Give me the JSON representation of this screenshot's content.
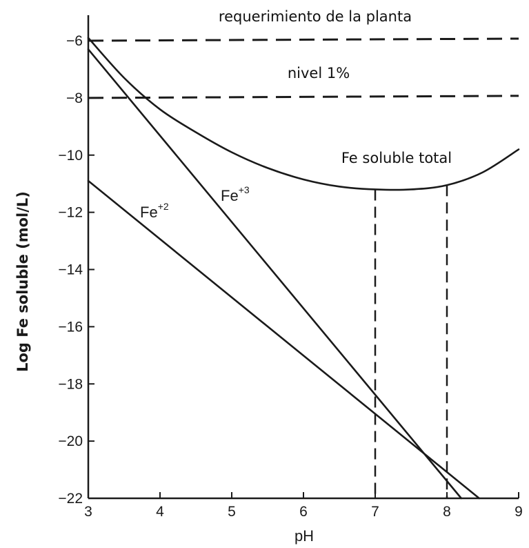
{
  "chart_data": {
    "type": "line",
    "title": "",
    "xlabel": "pH",
    "ylabel": "Log Fe soluble (mol/L)",
    "xlim": [
      3,
      9
    ],
    "ylim": [
      -22,
      -5.5
    ],
    "grid": false,
    "x_ticks": [
      "3",
      "4",
      "5",
      "6",
      "7",
      "8",
      "9"
    ],
    "y_ticks": [
      "−6",
      "−8",
      "−10",
      "−12",
      "−14",
      "−16",
      "−18",
      "−20",
      "−22"
    ],
    "x_tick_values": [
      3,
      4,
      5,
      6,
      7,
      8,
      9
    ],
    "y_tick_values": [
      -6,
      -8,
      -10,
      -12,
      -14,
      -16,
      -18,
      -20,
      -22
    ],
    "series": [
      {
        "name": "Fe+3",
        "label_base": "Fe",
        "label_sup": "+3",
        "style": "solid",
        "x": [
          3,
          8.2
        ],
        "y": [
          -6.3,
          -22
        ]
      },
      {
        "name": "Fe+2",
        "label_base": "Fe",
        "label_sup": "+2",
        "style": "solid",
        "x": [
          3,
          8.45
        ],
        "y": [
          -10.9,
          -22
        ]
      },
      {
        "name": "Fe soluble total",
        "style": "solid",
        "x": [
          3.0,
          3.5,
          4.0,
          4.5,
          5.0,
          5.5,
          6.0,
          6.5,
          7.0,
          7.5,
          8.0,
          8.5,
          9.0
        ],
        "y": [
          -5.9,
          -7.3,
          -8.4,
          -9.2,
          -9.9,
          -10.45,
          -10.85,
          -11.1,
          -11.2,
          -11.2,
          -11.05,
          -10.6,
          -9.8
        ]
      }
    ],
    "reference_lines": [
      {
        "label": "requerimiento de la planta",
        "y": -6,
        "orientation": "horizontal",
        "style": "dashed"
      },
      {
        "label": "nivel 1%",
        "y": -8,
        "orientation": "horizontal",
        "style": "dashed"
      },
      {
        "x": 7,
        "y_top": -11.2,
        "orientation": "vertical",
        "style": "dashed"
      },
      {
        "x": 8,
        "y_top": -11.05,
        "orientation": "vertical",
        "style": "dashed"
      }
    ]
  }
}
